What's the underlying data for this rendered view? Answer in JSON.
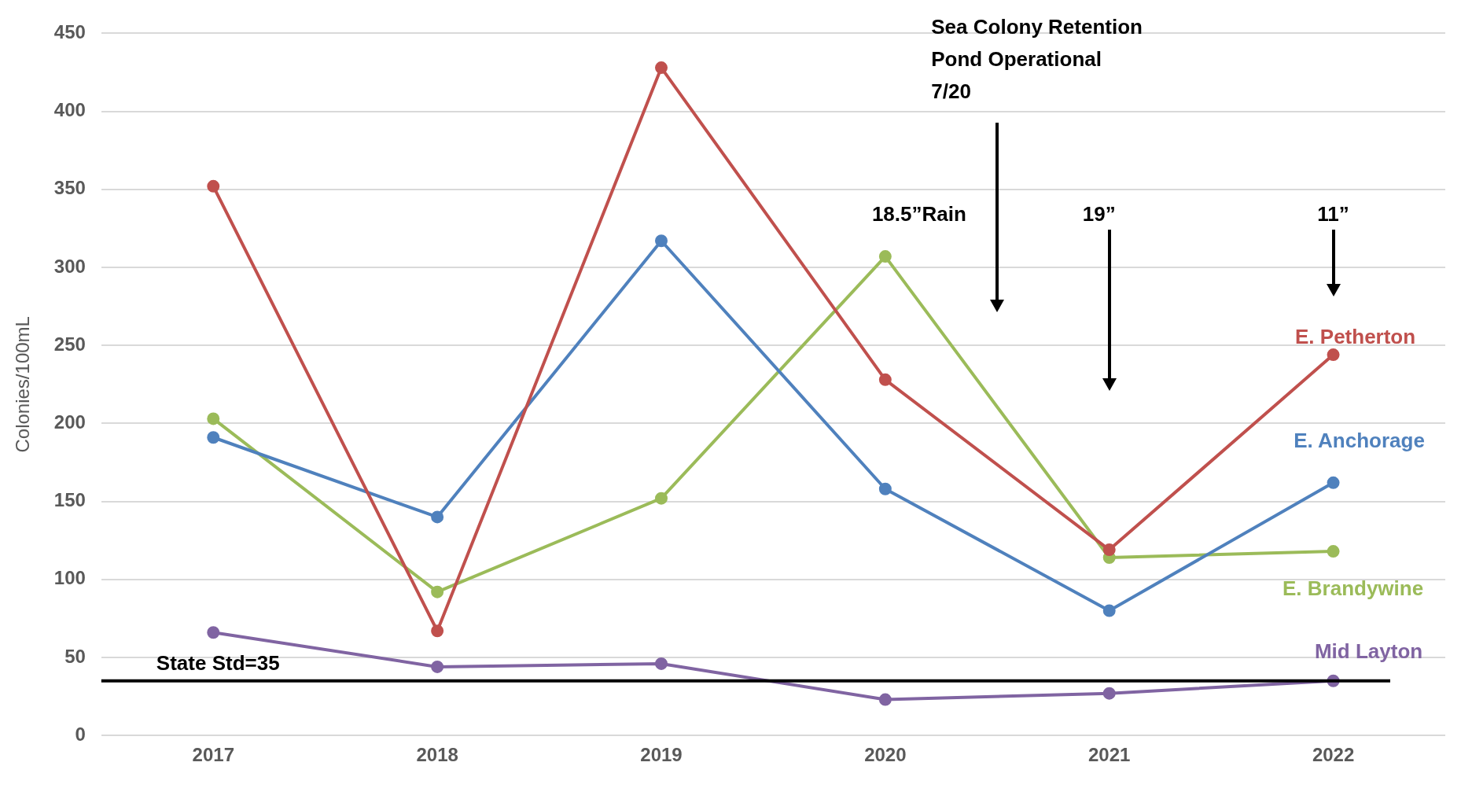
{
  "chart_data": {
    "type": "line",
    "ylabel": "Colonies/100mL",
    "categories": [
      "2017",
      "2018",
      "2019",
      "2020",
      "2021",
      "2022"
    ],
    "series": [
      {
        "name": "E. Petherton",
        "color": "#c0504d",
        "values": [
          352,
          67,
          428,
          228,
          119,
          244
        ]
      },
      {
        "name": "E. Anchorage",
        "color": "#4f81bd",
        "values": [
          191,
          140,
          317,
          158,
          80,
          162
        ]
      },
      {
        "name": "E. Brandywine",
        "color": "#9bbb59",
        "values": [
          203,
          92,
          152,
          307,
          114,
          118
        ]
      },
      {
        "name": "Mid Layton",
        "color": "#8064a2",
        "values": [
          66,
          44,
          46,
          23,
          27,
          35
        ]
      }
    ],
    "ylim": [
      0,
      450
    ],
    "yticks": [
      0,
      50,
      100,
      150,
      200,
      250,
      300,
      350,
      400,
      450
    ],
    "grid": "y",
    "legend": false,
    "marker": "circle",
    "line_style": "solid",
    "ref_lines": [
      {
        "axis": "y",
        "value": 35,
        "label": "State Std=35",
        "color": "#000000"
      }
    ],
    "annotations": [
      "Sea Colony Retention Pond Operational 7/20",
      "18.5”Rain",
      "19”",
      "11”"
    ]
  }
}
